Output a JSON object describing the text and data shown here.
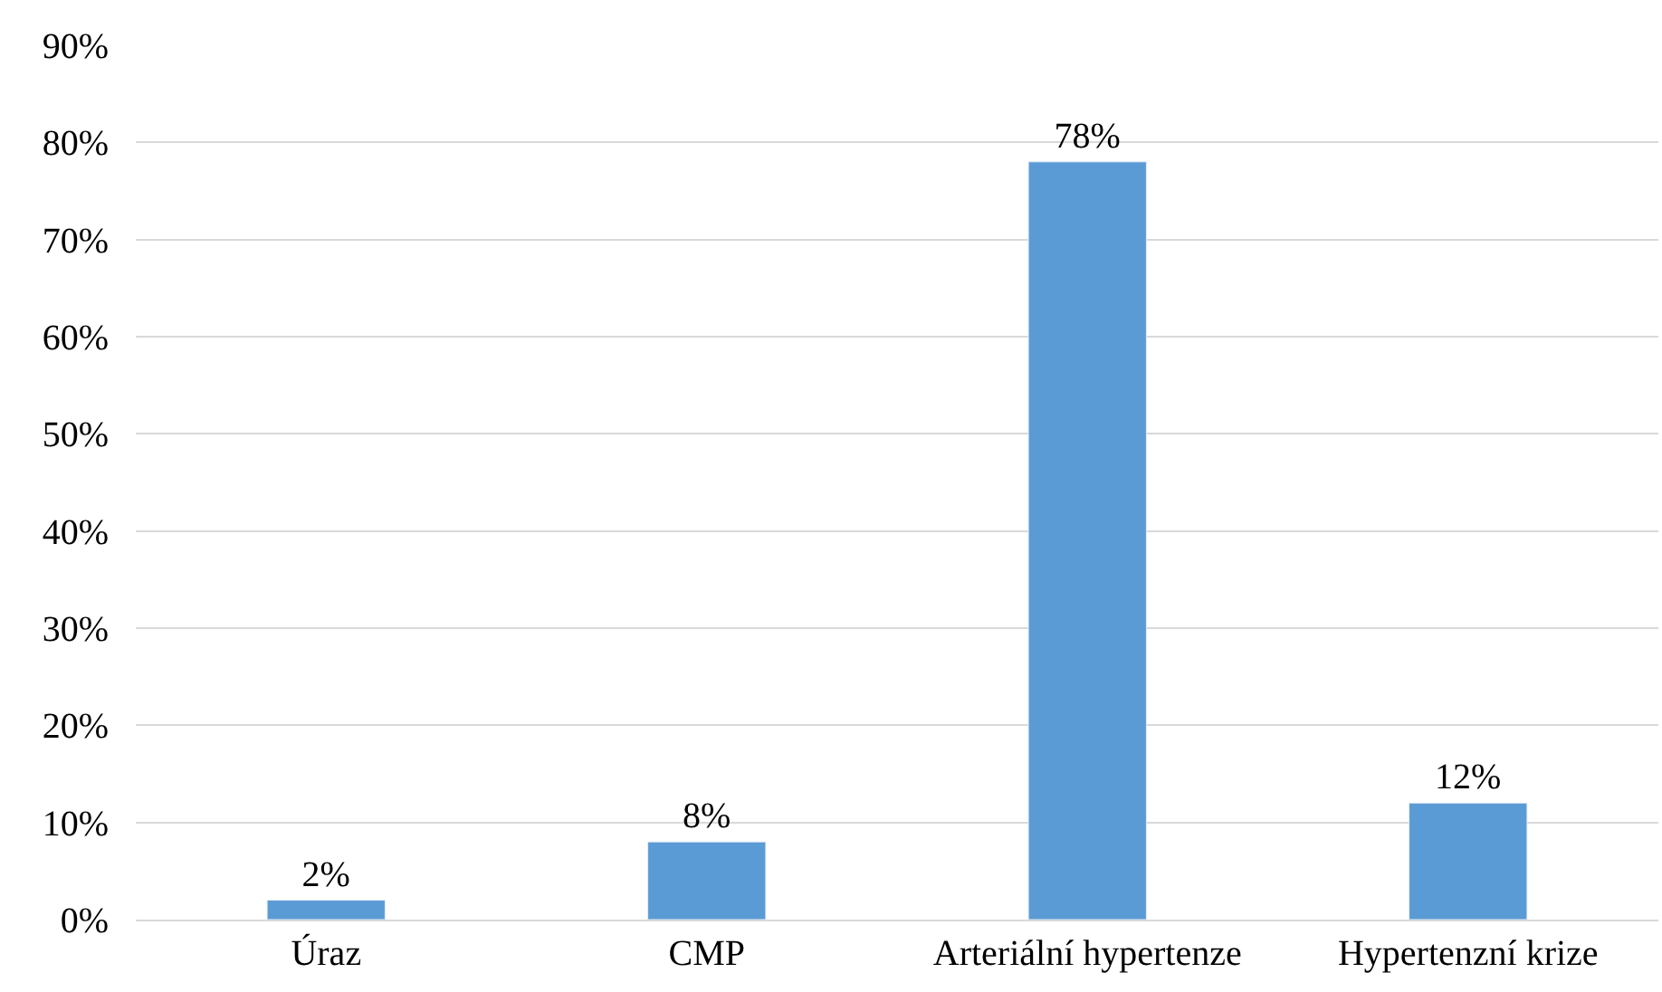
{
  "chart_data": {
    "type": "bar",
    "categories": [
      "Úraz",
      "CMP",
      "Arteriální hypertenze",
      "Hypertenzní krize"
    ],
    "values": [
      2,
      8,
      78,
      12
    ],
    "color": "#5b9bd5",
    "value_labels": [
      "2%",
      "8%",
      "78%",
      "12%"
    ],
    "ylim": [
      0,
      90
    ],
    "yticks": [
      {
        "value": 0,
        "label": "0%"
      },
      {
        "value": 10,
        "label": "10%"
      },
      {
        "value": 20,
        "label": "20%"
      },
      {
        "value": 30,
        "label": "30%"
      },
      {
        "value": 40,
        "label": "40%"
      },
      {
        "value": 50,
        "label": "50%"
      },
      {
        "value": 60,
        "label": "60%"
      },
      {
        "value": 70,
        "label": "70%"
      },
      {
        "value": 80,
        "label": "80%"
      },
      {
        "value": 90,
        "label": "90%"
      }
    ],
    "grid": "y",
    "legend": false
  }
}
